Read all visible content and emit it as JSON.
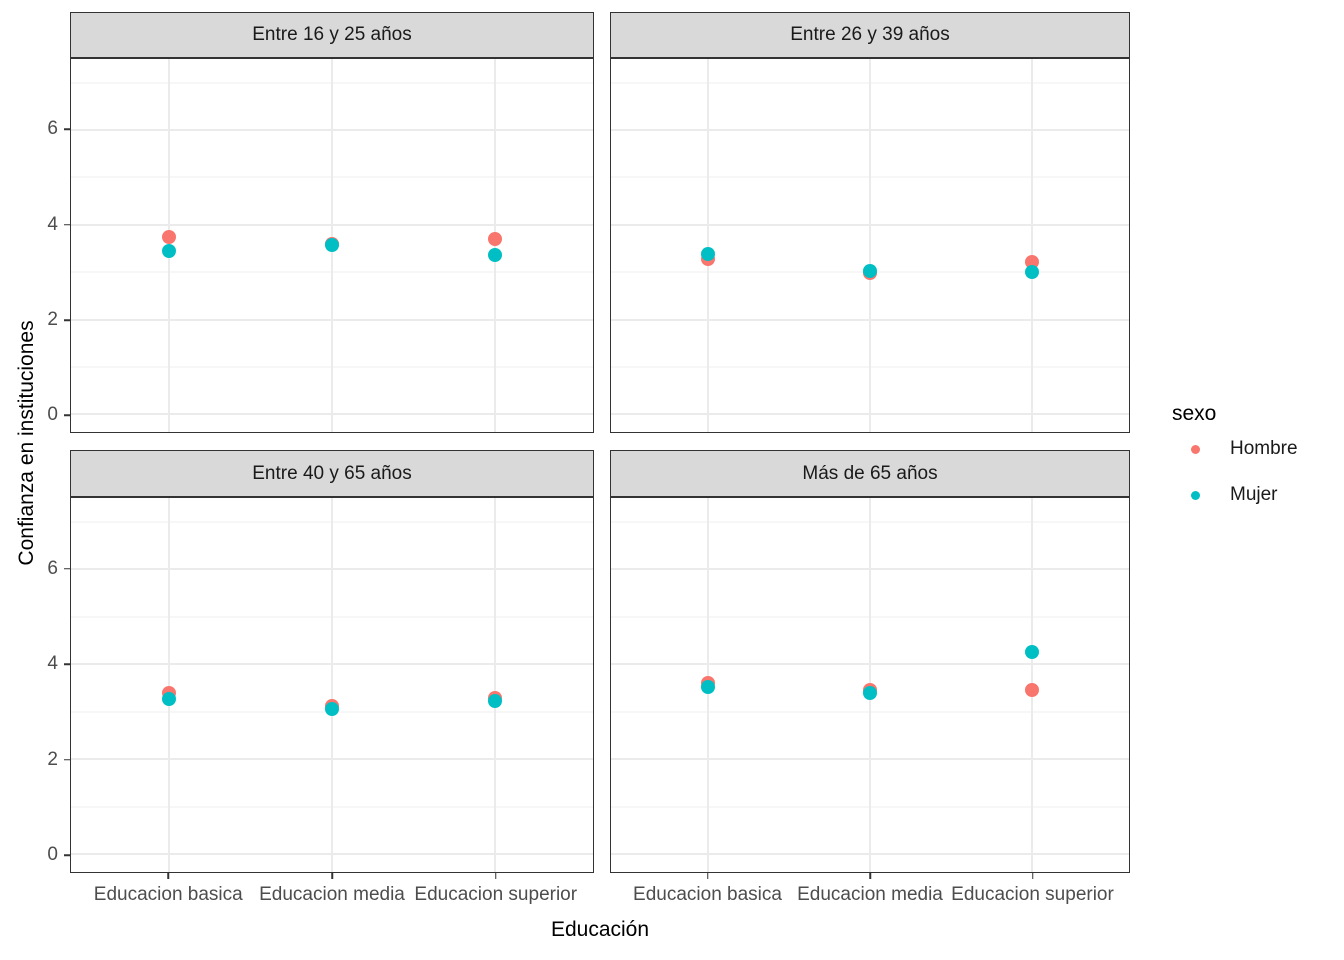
{
  "chart_data": {
    "type": "scatter",
    "xlabel": "Educación",
    "ylabel": "Confianza en instituciones",
    "x_categories": [
      "Educacion basica",
      "Educacion media",
      "Educacion superior"
    ],
    "y_ticks": [
      0,
      2,
      4,
      6
    ],
    "y_minor_ticks": [
      1,
      3,
      5,
      7
    ],
    "ylim": [
      -0.37,
      7.5
    ],
    "grid": true,
    "legend": {
      "title": "sexo",
      "position": "right",
      "items": [
        {
          "label": "Hombre",
          "color": "#F8766D"
        },
        {
          "label": "Mujer",
          "color": "#00BFC4"
        }
      ]
    },
    "facets": [
      {
        "title": "Entre 16 y 25 años",
        "series": [
          {
            "name": "Hombre",
            "color": "#F8766D",
            "values": [
              3.75,
              3.6,
              3.7
            ]
          },
          {
            "name": "Mujer",
            "color": "#00BFC4",
            "values": [
              3.45,
              3.57,
              3.37
            ]
          }
        ]
      },
      {
        "title": "Entre 26 y 39 años",
        "series": [
          {
            "name": "Hombre",
            "color": "#F8766D",
            "values": [
              3.27,
              2.98,
              3.22
            ]
          },
          {
            "name": "Mujer",
            "color": "#00BFC4",
            "values": [
              3.38,
              3.03,
              3.0
            ]
          }
        ]
      },
      {
        "title": "Entre 40 y 65 años",
        "series": [
          {
            "name": "Hombre",
            "color": "#F8766D",
            "values": [
              3.4,
              3.12,
              3.3
            ]
          },
          {
            "name": "Mujer",
            "color": "#00BFC4",
            "values": [
              3.26,
              3.07,
              3.23
            ]
          }
        ]
      },
      {
        "title": "Más de 65 años",
        "series": [
          {
            "name": "Hombre",
            "color": "#F8766D",
            "values": [
              3.6,
              3.47,
              3.45
            ]
          },
          {
            "name": "Mujer",
            "color": "#00BFC4",
            "values": [
              3.52,
              3.4,
              4.25
            ]
          }
        ]
      }
    ],
    "style": {
      "strip_background": "#D9D9D9",
      "panel_border": "#333333",
      "grid_major": "#EBEBEB",
      "grid_minor": "#EFEFEF"
    }
  }
}
